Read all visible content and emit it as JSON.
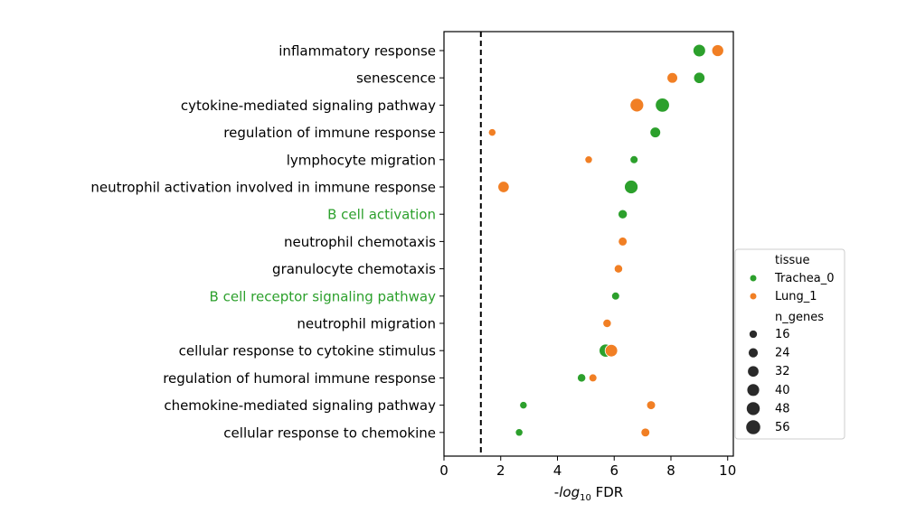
{
  "chart_data": {
    "type": "scatter",
    "xlabel_prefix": "-",
    "xlabel_italic": "log",
    "xlabel_sub": "10",
    "xlabel_suffix": " FDR",
    "xlim": [
      0,
      10.2
    ],
    "x_ticks": [
      0,
      2,
      4,
      6,
      8,
      10
    ],
    "threshold_line_x": 1.3,
    "categories": [
      {
        "label": "inflammatory response",
        "color": "#000000"
      },
      {
        "label": "senescence",
        "color": "#000000"
      },
      {
        "label": "cytokine-mediated signaling pathway",
        "color": "#000000"
      },
      {
        "label": "regulation of immune response",
        "color": "#000000"
      },
      {
        "label": "lymphocyte migration",
        "color": "#000000"
      },
      {
        "label": "neutrophil activation involved in immune response",
        "color": "#000000"
      },
      {
        "label": "B cell activation",
        "color": "#2ca02c"
      },
      {
        "label": "neutrophil chemotaxis",
        "color": "#000000"
      },
      {
        "label": "granulocyte chemotaxis",
        "color": "#000000"
      },
      {
        "label": "B cell receptor signaling pathway",
        "color": "#2ca02c"
      },
      {
        "label": "neutrophil migration",
        "color": "#000000"
      },
      {
        "label": "cellular response to cytokine stimulus",
        "color": "#000000"
      },
      {
        "label": "regulation of humoral immune response",
        "color": "#000000"
      },
      {
        "label": "chemokine-mediated signaling pathway",
        "color": "#000000"
      },
      {
        "label": "cellular response to chemokine",
        "color": "#000000"
      }
    ],
    "series": [
      {
        "name": "Trachea_0",
        "color": "#2ca02c",
        "points": [
          {
            "category": 0,
            "x": 9.0,
            "n_genes": 44
          },
          {
            "category": 1,
            "x": 9.0,
            "n_genes": 36
          },
          {
            "category": 2,
            "x": 7.7,
            "n_genes": 56
          },
          {
            "category": 3,
            "x": 7.45,
            "n_genes": 32
          },
          {
            "category": 4,
            "x": 6.7,
            "n_genes": 18
          },
          {
            "category": 5,
            "x": 6.6,
            "n_genes": 52
          },
          {
            "category": 6,
            "x": 6.3,
            "n_genes": 24
          },
          {
            "category": 9,
            "x": 6.05,
            "n_genes": 18
          },
          {
            "category": 11,
            "x": 5.7,
            "n_genes": 48
          },
          {
            "category": 12,
            "x": 4.85,
            "n_genes": 20
          },
          {
            "category": 13,
            "x": 2.8,
            "n_genes": 16
          },
          {
            "category": 14,
            "x": 2.65,
            "n_genes": 16
          }
        ]
      },
      {
        "name": "Lung_1",
        "color": "#f17f24",
        "points": [
          {
            "category": 0,
            "x": 9.65,
            "n_genes": 40
          },
          {
            "category": 1,
            "x": 8.05,
            "n_genes": 32
          },
          {
            "category": 2,
            "x": 6.8,
            "n_genes": 52
          },
          {
            "category": 3,
            "x": 1.7,
            "n_genes": 16
          },
          {
            "category": 4,
            "x": 5.1,
            "n_genes": 16
          },
          {
            "category": 5,
            "x": 2.1,
            "n_genes": 36
          },
          {
            "category": 7,
            "x": 6.3,
            "n_genes": 22
          },
          {
            "category": 8,
            "x": 6.15,
            "n_genes": 20
          },
          {
            "category": 10,
            "x": 5.75,
            "n_genes": 20
          },
          {
            "category": 11,
            "x": 5.9,
            "n_genes": 44
          },
          {
            "category": 12,
            "x": 5.25,
            "n_genes": 18
          },
          {
            "category": 13,
            "x": 7.3,
            "n_genes": 22
          },
          {
            "category": 14,
            "x": 7.1,
            "n_genes": 22
          }
        ]
      }
    ],
    "legend": {
      "placement": "right",
      "hue_title": "tissue",
      "size_title": "n_genes",
      "size_entries": [
        16,
        24,
        32,
        40,
        48,
        56
      ]
    }
  }
}
